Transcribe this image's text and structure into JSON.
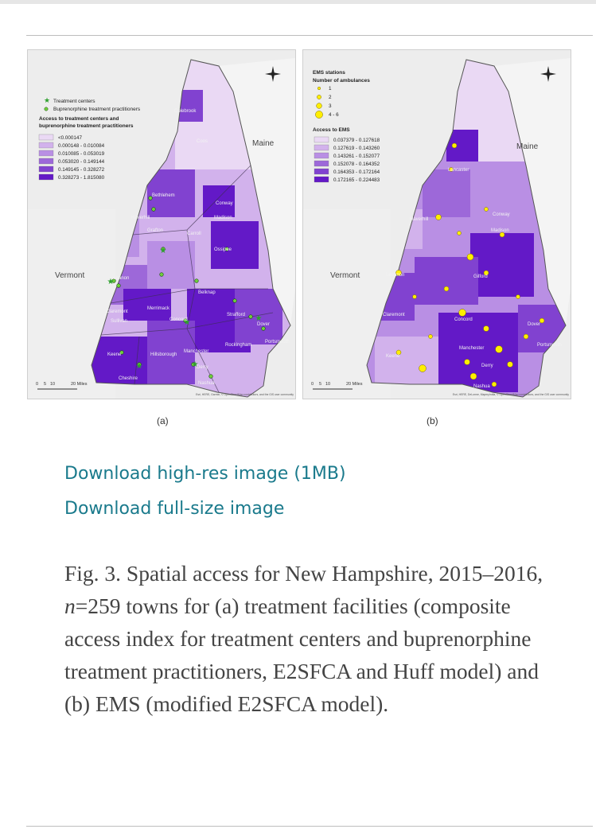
{
  "figure": {
    "panel_a": {
      "letter": "(a)",
      "legend": {
        "point_items": [
          "Treatment centers",
          "Buprenorphine treatment practitioners"
        ],
        "title_line1": "Access to treatment centers and",
        "title_line2": "buprenorphine treatment practitioners",
        "classes": [
          "<0.000147",
          "0.000148 - 0.010084",
          "0.010085 - 0.053019",
          "0.053020 - 0.149144",
          "0.149145 - 0.328272",
          "0.328273 - 1.815080"
        ],
        "colors": [
          "#ead9f4",
          "#d2b2ec",
          "#b98fe4",
          "#9d68d9",
          "#8142d0",
          "#6319c7"
        ]
      },
      "labels": {
        "maine": "Maine",
        "vermont": "Vermont",
        "towns": [
          "Colebrook",
          "Coos",
          "Bethlehem",
          "Haverhill",
          "Grafton",
          "Conway",
          "Madison",
          "Carroll",
          "Ossipee",
          "Lebanon",
          "Belknap",
          "Merrimack",
          "Claremont",
          "Sullivan",
          "Concord",
          "Strafford",
          "Dover",
          "Portsmouth",
          "Rockingham",
          "Manchester",
          "Keene",
          "Hillsborough",
          "Derry",
          "Cheshire",
          "Nashua"
        ]
      },
      "scale": {
        "ticks": [
          "0",
          "5",
          "10",
          "20 Miles"
        ]
      },
      "credit": "Esri, HERE, Garmin, © OpenStreetMap contributors, and the GIS user community"
    },
    "panel_b": {
      "letter": "(b)",
      "legend": {
        "title_line1": "EMS stations",
        "title_line2": "Number of ambulances",
        "sizes": [
          "1",
          "2",
          "3",
          "4 - 6"
        ],
        "access_title": "Access to EMS",
        "classes": [
          "0.037379 - 0.127618",
          "0.127619 - 0.143260",
          "0.143261 - 0.152077",
          "0.152078 - 0.164352",
          "0.164353 - 0.172164",
          "0.172165 - 0.224483"
        ],
        "colors": [
          "#ead9f4",
          "#d2b2ec",
          "#b98fe4",
          "#9d68d9",
          "#8142d0",
          "#6319c7"
        ],
        "marker_color": "#ffee00"
      },
      "labels": {
        "maine": "Maine",
        "vermont": "Vermont",
        "towns": [
          "Lancaster",
          "Haverhill",
          "Conway",
          "Madison",
          "Gilford",
          "Lebanon",
          "Claremont",
          "Concord",
          "Keene",
          "Manchester",
          "Dover",
          "Portsmouth",
          "Derry",
          "Nashua"
        ]
      },
      "scale": {
        "ticks": [
          "0",
          "5",
          "10",
          "20 Miles"
        ]
      },
      "credit": "Esri, HERE, DeLorme, MapmyIndia, © OpenStreetMap contributors, and the GIS user community"
    }
  },
  "links": {
    "high_res": "Download high-res image (1MB)",
    "full_size": "Download full-size image"
  },
  "caption": {
    "lead": "Fig. 3. Spatial access for New Hampshire, 2015–2016, ",
    "n_var": "n",
    "rest": "=259 towns for (a) treatment facilities (composite access index for treatment centers and buprenorphine treatment practitioners, E2SFCA and Huff model) and (b) EMS (modified E2SFCA model)."
  }
}
